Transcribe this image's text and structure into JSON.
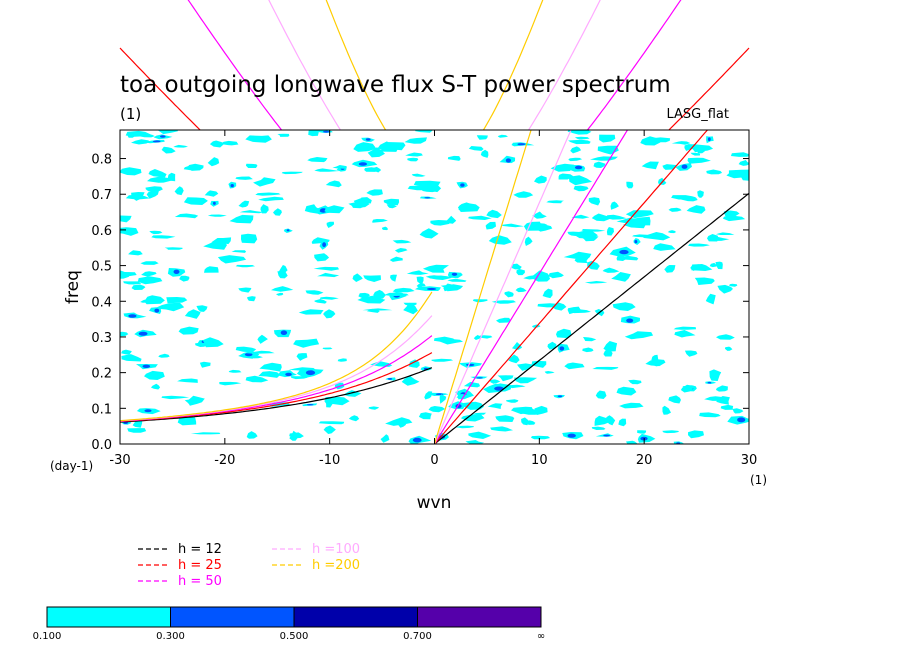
{
  "chart_data": {
    "type": "contour",
    "title": "toa outgoing longwave flux S-T power spectrum",
    "subtitle": "(1)",
    "model_label": "LASG_flat",
    "xlabel": "wvn",
    "ylabel": "freq",
    "xunit": "(1)",
    "yunit": "(day-1)",
    "xlim": [
      -30,
      30
    ],
    "ylim": [
      0,
      0.88
    ],
    "xticks": [
      -30,
      -20,
      -10,
      0,
      10,
      20,
      30
    ],
    "yticks": [
      0.0,
      0.1,
      0.2,
      0.3,
      0.4,
      0.5,
      0.6,
      0.7,
      0.8
    ],
    "xticklabels": [
      "-30",
      "-20",
      "-10",
      "0",
      "10",
      "20",
      "30"
    ],
    "yticklabels": [
      "0.0",
      "0.1",
      "0.2",
      "0.3",
      "0.4",
      "0.5",
      "0.6",
      "0.7",
      "0.8"
    ],
    "contour_levels": [
      {
        "label": "0.100",
        "color": "#00ffff"
      },
      {
        "label": "0.300",
        "color": "#0055ff"
      },
      {
        "label": "0.500",
        "color": "#0000aa"
      },
      {
        "label": "0.700",
        "color": "#5500aa"
      },
      {
        "label": "∞",
        "color": null
      }
    ],
    "series": [
      {
        "name": "h = 12",
        "h": 12,
        "color": "#000000"
      },
      {
        "name": "h = 25",
        "h": 25,
        "color": "#ff0000"
      },
      {
        "name": "h = 50",
        "h": 50,
        "color": "#ff00ff"
      },
      {
        "name": "h =100",
        "h": 100,
        "color": "#ffaaff"
      },
      {
        "name": "h =200",
        "h": 200,
        "color": "#ffcc00"
      }
    ],
    "legend_position": "below-left",
    "grid": false
  }
}
